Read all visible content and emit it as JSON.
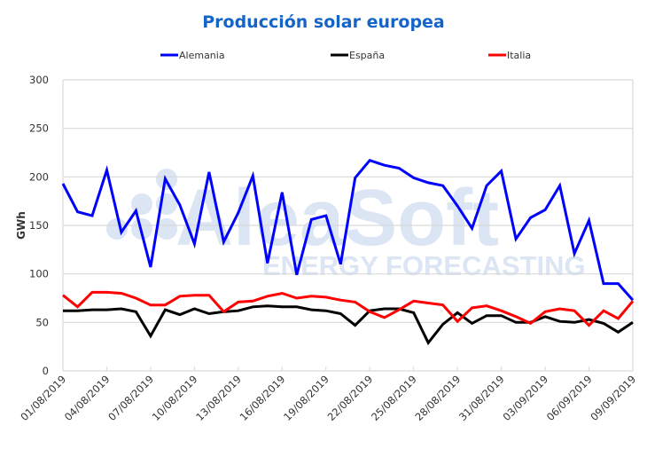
{
  "chart_data": {
    "type": "line",
    "title": "Producción solar europea",
    "xlabel": "",
    "ylabel": "GWh",
    "ylim": [
      0,
      300
    ],
    "yticks": [
      "0",
      "50",
      "100",
      "150",
      "200",
      "250",
      "300"
    ],
    "ytick_values": [
      0,
      50,
      100,
      150,
      200,
      250,
      300
    ],
    "grid": true,
    "legend_position": "top",
    "x": [
      "01/08/2019",
      "02/08/2019",
      "03/08/2019",
      "04/08/2019",
      "05/08/2019",
      "06/08/2019",
      "07/08/2019",
      "08/08/2019",
      "09/08/2019",
      "10/08/2019",
      "11/08/2019",
      "12/08/2019",
      "13/08/2019",
      "14/08/2019",
      "15/08/2019",
      "16/08/2019",
      "17/08/2019",
      "18/08/2019",
      "19/08/2019",
      "20/08/2019",
      "21/08/2019",
      "22/08/2019",
      "23/08/2019",
      "24/08/2019",
      "25/08/2019",
      "26/08/2019",
      "27/08/2019",
      "28/08/2019",
      "29/08/2019",
      "30/08/2019",
      "31/08/2019",
      "01/09/2019",
      "02/09/2019",
      "03/09/2019",
      "04/09/2019",
      "05/09/2019",
      "06/09/2019",
      "07/09/2019",
      "08/09/2019",
      "09/09/2019"
    ],
    "xtick_labels": [
      "01/08/2019",
      "04/08/2019",
      "07/08/2019",
      "10/08/2019",
      "13/08/2019",
      "16/08/2019",
      "19/08/2019",
      "22/08/2019",
      "25/08/2019",
      "28/08/2019",
      "31/08/2019",
      "03/09/2019",
      "06/09/2019",
      "09/09/2019"
    ],
    "series": [
      {
        "name": "Alemania",
        "color": "#0000ff",
        "values": [
          193,
          164,
          160,
          207,
          143,
          165,
          107,
          198,
          171,
          131,
          205,
          133,
          163,
          201,
          111,
          184,
          99,
          156,
          160,
          110,
          199,
          217,
          212,
          209,
          199,
          194,
          191,
          170,
          147,
          191,
          206,
          136,
          158,
          166,
          191,
          121,
          155,
          90,
          90,
          73
        ]
      },
      {
        "name": "España",
        "color": "#000000",
        "values": [
          62,
          62,
          63,
          63,
          64,
          61,
          36,
          63,
          58,
          64,
          59,
          61,
          62,
          66,
          67,
          66,
          66,
          63,
          62,
          59,
          47,
          62,
          64,
          64,
          60,
          29,
          48,
          60,
          49,
          57,
          57,
          50,
          50,
          56,
          51,
          50,
          53,
          49,
          40,
          50
        ]
      },
      {
        "name": "Italia",
        "color": "#ff0000",
        "values": [
          78,
          66,
          81,
          81,
          80,
          75,
          68,
          68,
          77,
          78,
          78,
          61,
          71,
          72,
          77,
          80,
          75,
          77,
          76,
          73,
          71,
          61,
          55,
          63,
          72,
          70,
          68,
          51,
          65,
          67,
          62,
          56,
          49,
          61,
          64,
          62,
          47,
          62,
          54,
          72
        ]
      }
    ]
  },
  "watermark": {
    "brand": "AleaSoft",
    "tagline": "ENERGY FORECASTING"
  }
}
